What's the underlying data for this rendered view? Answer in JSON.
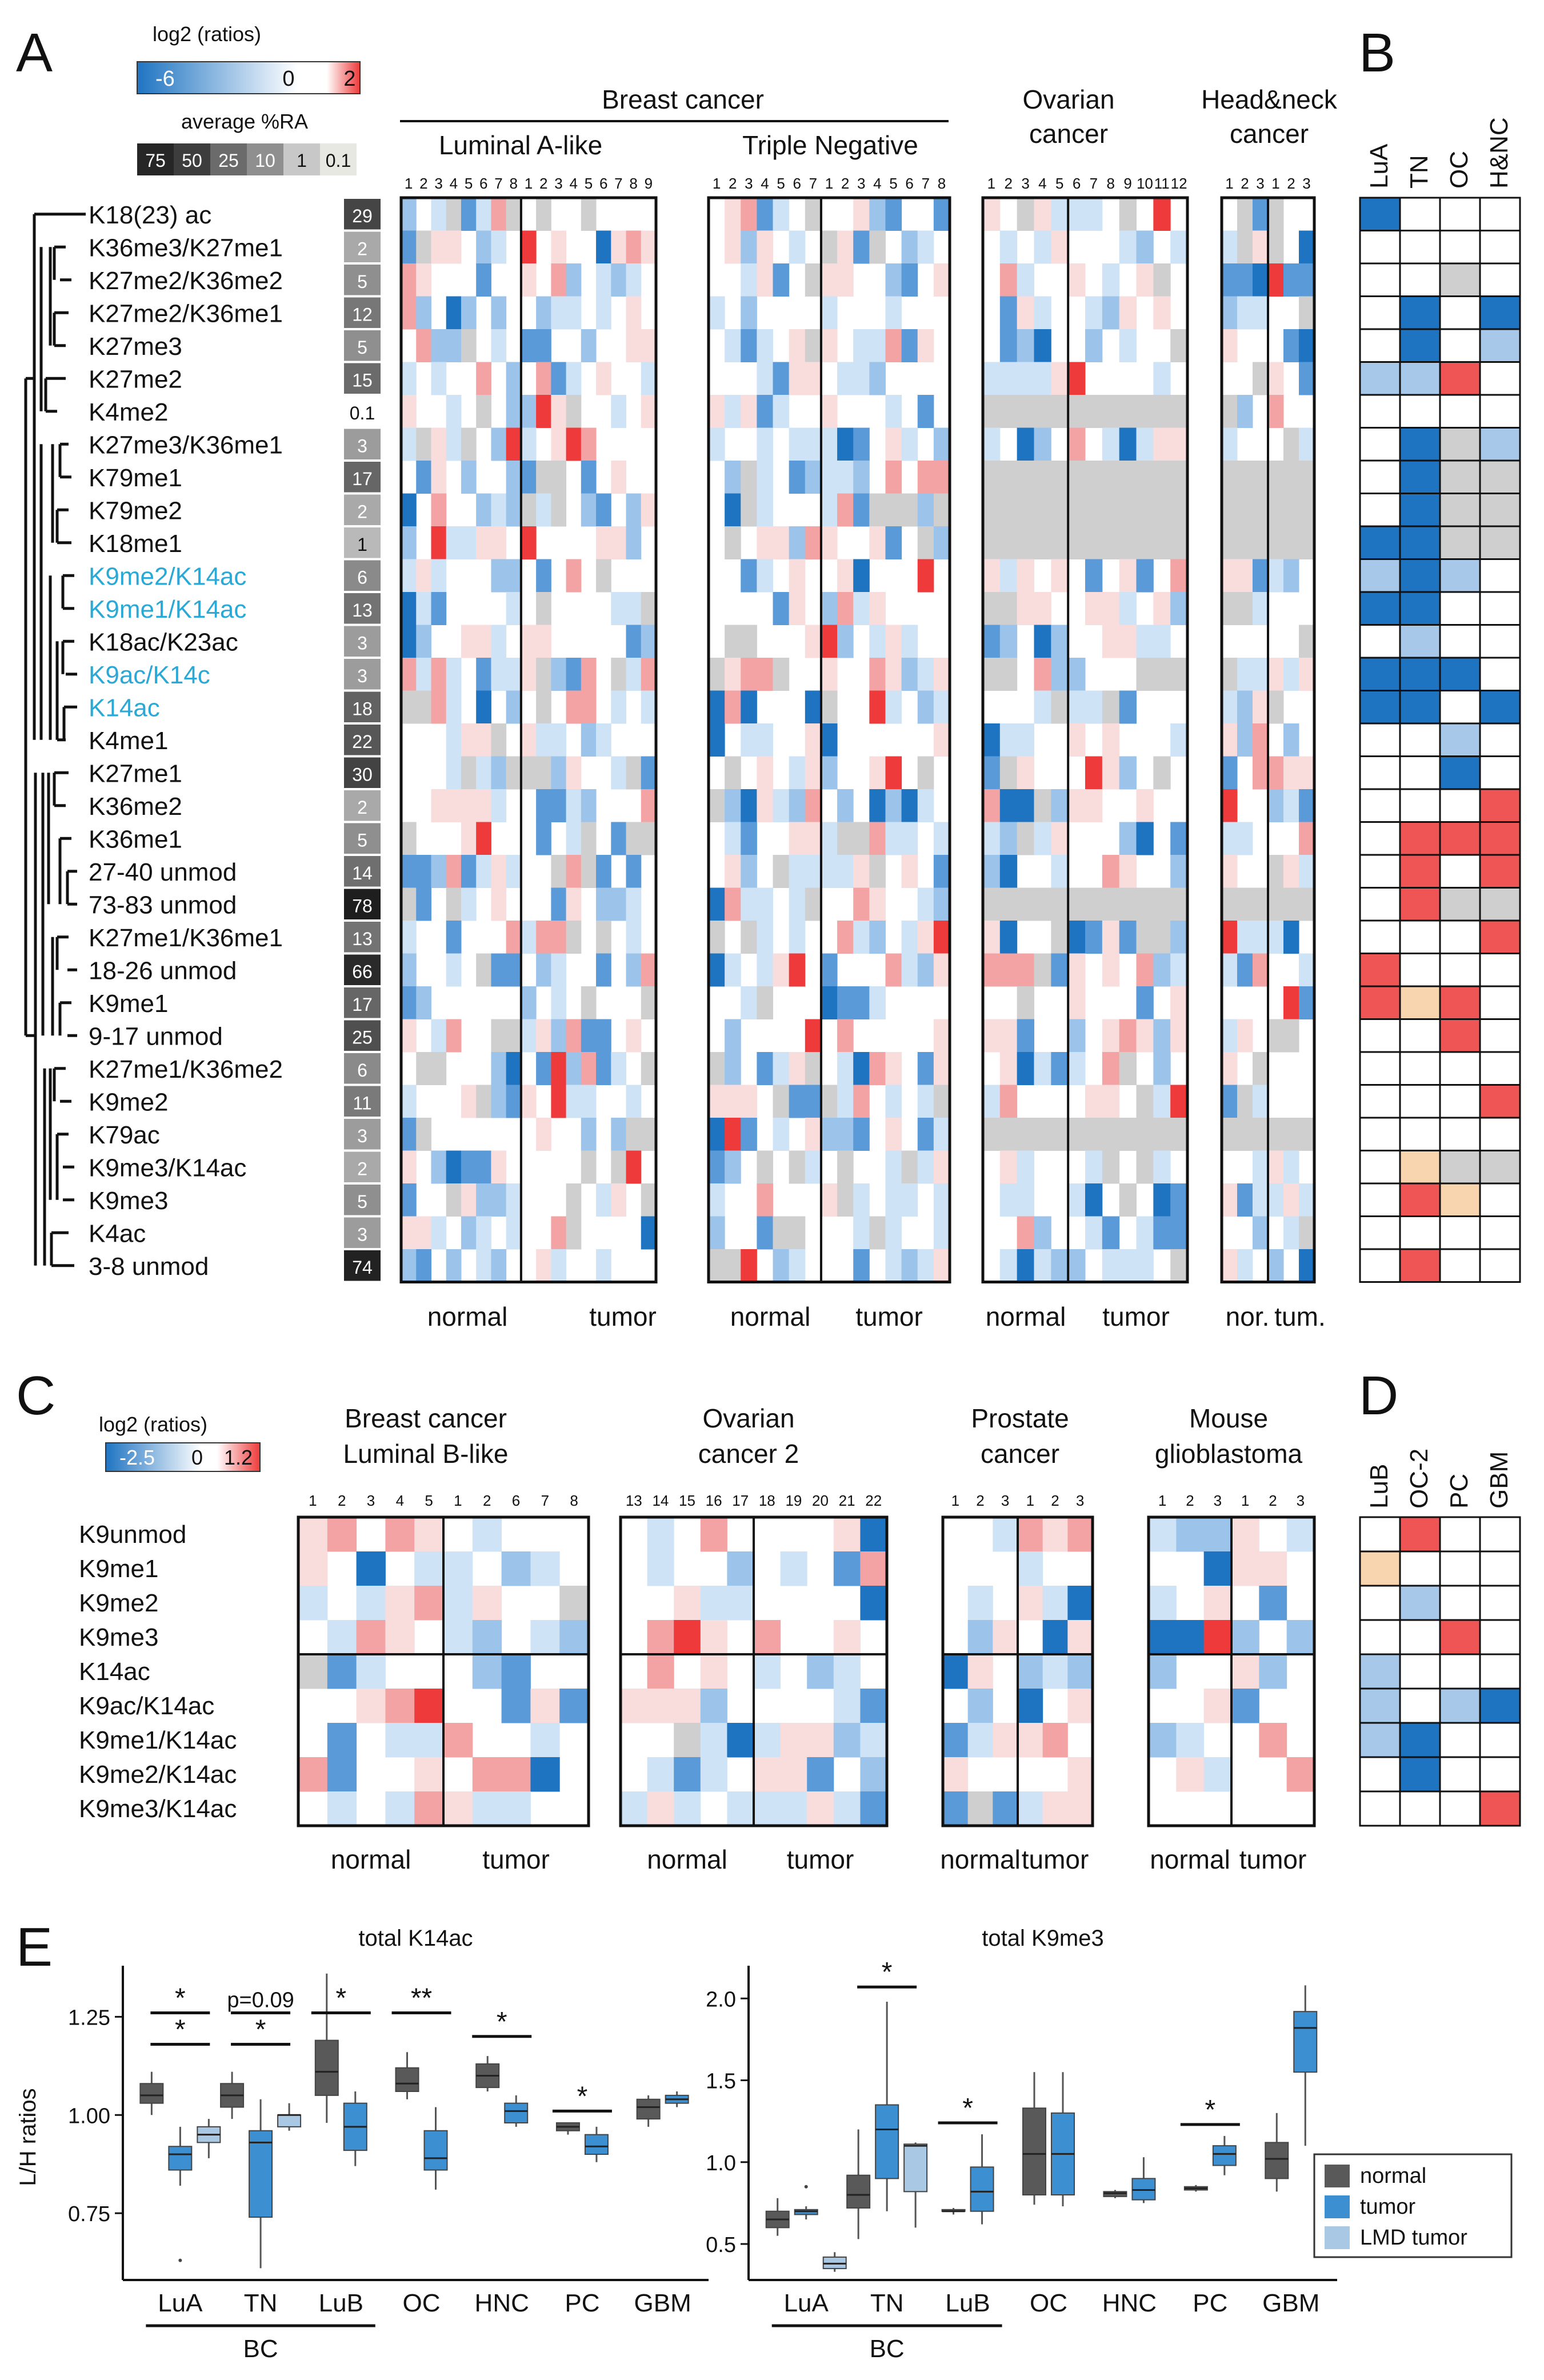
{
  "colors": {
    "neg": "#1f74c2",
    "neg_light": "#cfe3f6",
    "pos": "#ee3a3a",
    "pos_light": "#f9dddd",
    "missing": "#cfcfcf",
    "pale": "#f8d5ae",
    "white": "#ffffff",
    "normal": "#595959",
    "tumor": "#3c8fd1",
    "lmd": "#a9c8e4"
  },
  "panelA": {
    "label": "A",
    "legend_title": "log2 (ratios)",
    "legend_min": "-6",
    "legend_mid": "0",
    "legend_max": "2",
    "ra_title": "average %RA",
    "ra_bins": [
      "75",
      "50",
      "25",
      "10",
      "1",
      "0.1"
    ],
    "group_bc": "Breast cancer",
    "sub_lua": "Luminal A-like",
    "sub_tn": "Triple Negative",
    "group_oc": "Ovarian cancer",
    "group_hnc": "Head&neck cancer",
    "idx_lua": "1 2 3 4 5 6 7 8 1 2 3 4 5 6 7 8 9",
    "idx_tn": "1 2 3 4 5 6 7 1 2 3 4 5 6 7 8",
    "idx_oc": "1 2 3 4 5 6 7 8 9 10 11 12",
    "idx_hnc": "1 2 3 1 2 3",
    "foot_normal": "normal",
    "foot_tumor": "tumor",
    "foot_nor": "nor.",
    "foot_tum": "tum.",
    "rows": [
      {
        "label": "K18(23) ac",
        "ra": "29"
      },
      {
        "label": "K36me3/K27me1",
        "ra": "2"
      },
      {
        "label": "K27me2/K36me2",
        "ra": "5"
      },
      {
        "label": "K27me2/K36me1",
        "ra": "12"
      },
      {
        "label": "K27me3",
        "ra": "5"
      },
      {
        "label": "K27me2",
        "ra": "15"
      },
      {
        "label": "K4me2",
        "ra": "0.1"
      },
      {
        "label": "K27me3/K36me1",
        "ra": "3"
      },
      {
        "label": "K79me1",
        "ra": "17"
      },
      {
        "label": "K79me2",
        "ra": "2"
      },
      {
        "label": "K18me1",
        "ra": "1"
      },
      {
        "label": "K9me2/K14ac",
        "ra": "6",
        "highlight": true
      },
      {
        "label": "K9me1/K14ac",
        "ra": "13",
        "highlight": true
      },
      {
        "label": "K18ac/K23ac",
        "ra": "3"
      },
      {
        "label": "K9ac/K14c",
        "ra": "3",
        "highlight": true
      },
      {
        "label": "K14ac",
        "ra": "18",
        "highlight": true
      },
      {
        "label": "K4me1",
        "ra": "22"
      },
      {
        "label": "K27me1",
        "ra": "30"
      },
      {
        "label": "K36me2",
        "ra": "2"
      },
      {
        "label": "K36me1",
        "ra": "5"
      },
      {
        "label": "27-40 unmod",
        "ra": "14"
      },
      {
        "label": "73-83 unmod",
        "ra": "78"
      },
      {
        "label": "K27me1/K36me1",
        "ra": "13"
      },
      {
        "label": "18-26 unmod",
        "ra": "66"
      },
      {
        "label": "K9me1",
        "ra": "17"
      },
      {
        "label": "9-17 unmod",
        "ra": "25"
      },
      {
        "label": "K27me1/K36me2",
        "ra": "6"
      },
      {
        "label": "K9me2",
        "ra": "11"
      },
      {
        "label": "K79ac",
        "ra": "3"
      },
      {
        "label": "K9me3/K14ac",
        "ra": "2"
      },
      {
        "label": "K9me3",
        "ra": "5"
      },
      {
        "label": "K4ac",
        "ra": "3"
      },
      {
        "label": "3-8 unmod",
        "ra": "74"
      }
    ]
  },
  "panelB": {
    "label": "B",
    "cols": [
      "LuA",
      "TN",
      "OC",
      "H&NC"
    ],
    "cells": [
      [
        "b",
        "w",
        "w",
        "w"
      ],
      [
        "w",
        "w",
        "w",
        "w"
      ],
      [
        "w",
        "w",
        "g",
        "w"
      ],
      [
        "w",
        "b",
        "w",
        "b"
      ],
      [
        "w",
        "b",
        "w",
        "l"
      ],
      [
        "l",
        "l",
        "r",
        "w"
      ],
      [
        "w",
        "w",
        "w",
        "w"
      ],
      [
        "w",
        "b",
        "g",
        "l"
      ],
      [
        "w",
        "b",
        "g",
        "g"
      ],
      [
        "w",
        "b",
        "g",
        "g"
      ],
      [
        "b",
        "b",
        "g",
        "g"
      ],
      [
        "l",
        "b",
        "l",
        "w"
      ],
      [
        "b",
        "b",
        "w",
        "w"
      ],
      [
        "w",
        "l",
        "w",
        "w"
      ],
      [
        "b",
        "b",
        "b",
        "w"
      ],
      [
        "b",
        "b",
        "w",
        "b"
      ],
      [
        "w",
        "w",
        "l",
        "w"
      ],
      [
        "w",
        "w",
        "b",
        "w"
      ],
      [
        "w",
        "w",
        "w",
        "r"
      ],
      [
        "w",
        "r",
        "r",
        "r"
      ],
      [
        "w",
        "r",
        "w",
        "r"
      ],
      [
        "w",
        "r",
        "g",
        "g"
      ],
      [
        "w",
        "w",
        "w",
        "r"
      ],
      [
        "r",
        "w",
        "w",
        "w"
      ],
      [
        "r",
        "p",
        "r",
        "w"
      ],
      [
        "w",
        "w",
        "r",
        "w"
      ],
      [
        "w",
        "w",
        "w",
        "w"
      ],
      [
        "w",
        "w",
        "w",
        "r"
      ],
      [
        "w",
        "w",
        "w",
        "w"
      ],
      [
        "w",
        "p",
        "g",
        "g"
      ],
      [
        "w",
        "r",
        "p",
        "w"
      ],
      [
        "w",
        "w",
        "w",
        "w"
      ],
      [
        "w",
        "r",
        "w",
        "w"
      ]
    ]
  },
  "panelC": {
    "label": "C",
    "legend_title": "log2 (ratios)",
    "legend_min": "-2.5",
    "legend_mid": "0",
    "legend_max": "1.2",
    "titles": [
      "Breast cancer Luminal B-like",
      "Ovarian cancer 2",
      "Prostate cancer",
      "Mouse glioblastoma"
    ],
    "t1a": "Breast cancer",
    "t1b": "Luminal B-like",
    "t2a": "Ovarian",
    "t2b": "cancer 2",
    "t3a": "Prostate",
    "t3b": "cancer",
    "t4a": "Mouse",
    "t4b": "glioblastoma",
    "idx_lub": "1 2 3 4 5 1 2 6 7 8",
    "idx_oc2": "13 14 15 16 17 18 19 20 21 22",
    "idx_pc": "1 2 3 1 2 3",
    "idx_gbm": "1 2 3 1 2 3",
    "rows": [
      "K9unmod",
      "K9me1",
      "K9me2",
      "K9me3",
      "K14ac",
      "K9ac/K14ac",
      "K9me1/K14ac",
      "K9me2/K14ac",
      "K9me3/K14ac"
    ],
    "foot_normal": "normal",
    "foot_tumor": "tumor"
  },
  "panelD": {
    "label": "D",
    "cols": [
      "LuB",
      "OC-2",
      "PC",
      "GBM"
    ],
    "cells": [
      [
        "w",
        "r",
        "w",
        "w"
      ],
      [
        "p",
        "w",
        "w",
        "w"
      ],
      [
        "w",
        "l",
        "w",
        "w"
      ],
      [
        "w",
        "w",
        "r",
        "w"
      ],
      [
        "l",
        "w",
        "w",
        "w"
      ],
      [
        "l",
        "w",
        "l",
        "b"
      ],
      [
        "l",
        "b",
        "w",
        "w"
      ],
      [
        "w",
        "b",
        "w",
        "w"
      ],
      [
        "w",
        "w",
        "w",
        "r"
      ]
    ]
  },
  "panelE": {
    "label": "E",
    "ylabel": "L/H ratios",
    "legend": [
      "normal",
      "tumor",
      "LMD tumor"
    ],
    "bc_label": "BC",
    "chart_data": [
      {
        "type": "box",
        "title": "total K14ac",
        "ylabel": "L/H ratios",
        "ylim": [
          0.58,
          1.38
        ],
        "yticks": [
          "0.75",
          "1.00",
          "1.25"
        ],
        "categories": [
          "LuA",
          "TN",
          "LuB",
          "OC",
          "HNC",
          "PC",
          "GBM"
        ],
        "boxes": [
          {
            "cat": "LuA",
            "group": "normal",
            "min": 1.0,
            "q1": 1.03,
            "med": 1.05,
            "q3": 1.08,
            "max": 1.11
          },
          {
            "cat": "LuA",
            "group": "tumor",
            "min": 0.82,
            "q1": 0.86,
            "med": 0.9,
            "q3": 0.92,
            "max": 0.97,
            "outlier": 0.63
          },
          {
            "cat": "LuA",
            "group": "LMD tumor",
            "min": 0.89,
            "q1": 0.93,
            "med": 0.95,
            "q3": 0.97,
            "max": 0.99
          },
          {
            "cat": "TN",
            "group": "normal",
            "min": 0.99,
            "q1": 1.02,
            "med": 1.05,
            "q3": 1.08,
            "max": 1.11
          },
          {
            "cat": "TN",
            "group": "tumor",
            "min": 0.61,
            "q1": 0.74,
            "med": 0.93,
            "q3": 0.96,
            "max": 1.04
          },
          {
            "cat": "TN",
            "group": "LMD tumor",
            "min": 0.96,
            "q1": 0.97,
            "med": 1.0,
            "q3": 1.0,
            "max": 1.03
          },
          {
            "cat": "LuB",
            "group": "normal",
            "min": 0.98,
            "q1": 1.05,
            "med": 1.11,
            "q3": 1.19,
            "max": 1.36
          },
          {
            "cat": "LuB",
            "group": "tumor",
            "min": 0.87,
            "q1": 0.91,
            "med": 0.97,
            "q3": 1.03,
            "max": 1.06
          },
          {
            "cat": "OC",
            "group": "normal",
            "min": 1.04,
            "q1": 1.06,
            "med": 1.08,
            "q3": 1.12,
            "max": 1.16
          },
          {
            "cat": "OC",
            "group": "tumor",
            "min": 0.81,
            "q1": 0.86,
            "med": 0.89,
            "q3": 0.96,
            "max": 1.02
          },
          {
            "cat": "HNC",
            "group": "normal",
            "min": 1.06,
            "q1": 1.07,
            "med": 1.1,
            "q3": 1.13,
            "max": 1.15
          },
          {
            "cat": "HNC",
            "group": "tumor",
            "min": 0.97,
            "q1": 0.98,
            "med": 1.01,
            "q3": 1.03,
            "max": 1.05
          },
          {
            "cat": "PC",
            "group": "normal",
            "min": 0.95,
            "q1": 0.96,
            "med": 0.97,
            "q3": 0.98,
            "max": 0.98
          },
          {
            "cat": "PC",
            "group": "tumor",
            "min": 0.88,
            "q1": 0.9,
            "med": 0.92,
            "q3": 0.95,
            "max": 0.97
          },
          {
            "cat": "GBM",
            "group": "normal",
            "min": 0.97,
            "q1": 0.99,
            "med": 1.02,
            "q3": 1.04,
            "max": 1.05
          },
          {
            "cat": "GBM",
            "group": "tumor",
            "min": 1.02,
            "q1": 1.03,
            "med": 1.04,
            "q3": 1.05,
            "max": 1.06
          }
        ],
        "annotations": [
          {
            "cat": "LuA",
            "text": "*",
            "y": 1.26
          },
          {
            "cat": "LuA",
            "text": "*",
            "y": 1.18
          },
          {
            "cat": "TN",
            "text": "p=0.09",
            "y": 1.26
          },
          {
            "cat": "TN",
            "text": "*",
            "y": 1.18
          },
          {
            "cat": "LuB",
            "text": "*",
            "y": 1.26
          },
          {
            "cat": "OC",
            "text": "**",
            "y": 1.26
          },
          {
            "cat": "HNC",
            "text": "*",
            "y": 1.2
          },
          {
            "cat": "PC",
            "text": "*",
            "y": 1.01
          }
        ]
      },
      {
        "type": "box",
        "title": "total K9me3",
        "ylabel": "",
        "ylim": [
          0.28,
          2.2
        ],
        "yticks": [
          "0.5",
          "1.0",
          "1.5",
          "2.0"
        ],
        "categories": [
          "LuA",
          "TN",
          "LuB",
          "OC",
          "HNC",
          "PC",
          "GBM"
        ],
        "boxes": [
          {
            "cat": "LuA",
            "group": "normal",
            "min": 0.55,
            "q1": 0.6,
            "med": 0.65,
            "q3": 0.7,
            "max": 0.78
          },
          {
            "cat": "LuA",
            "group": "tumor",
            "min": 0.65,
            "q1": 0.68,
            "med": 0.7,
            "q3": 0.71,
            "max": 0.73,
            "outlier": 0.85
          },
          {
            "cat": "LuA",
            "group": "LMD tumor",
            "min": 0.33,
            "q1": 0.35,
            "med": 0.38,
            "q3": 0.42,
            "max": 0.45
          },
          {
            "cat": "TN",
            "group": "normal",
            "min": 0.53,
            "q1": 0.72,
            "med": 0.8,
            "q3": 0.92,
            "max": 1.2
          },
          {
            "cat": "TN",
            "group": "tumor",
            "min": 0.7,
            "q1": 0.9,
            "med": 1.2,
            "q3": 1.35,
            "max": 1.98
          },
          {
            "cat": "TN",
            "group": "LMD tumor",
            "min": 0.6,
            "q1": 0.82,
            "med": 1.1,
            "q3": 1.11,
            "max": 1.12
          },
          {
            "cat": "LuB",
            "group": "normal",
            "min": 0.68,
            "q1": 0.7,
            "med": 0.7,
            "q3": 0.71,
            "max": 0.72
          },
          {
            "cat": "LuB",
            "group": "tumor",
            "min": 0.62,
            "q1": 0.7,
            "med": 0.82,
            "q3": 0.97,
            "max": 1.17
          },
          {
            "cat": "OC",
            "group": "normal",
            "min": 0.74,
            "q1": 0.8,
            "med": 1.05,
            "q3": 1.33,
            "max": 1.55
          },
          {
            "cat": "OC",
            "group": "tumor",
            "min": 0.73,
            "q1": 0.8,
            "med": 1.05,
            "q3": 1.3,
            "max": 1.55
          },
          {
            "cat": "HNC",
            "group": "normal",
            "min": 0.78,
            "q1": 0.79,
            "med": 0.81,
            "q3": 0.82,
            "max": 0.83
          },
          {
            "cat": "HNC",
            "group": "tumor",
            "min": 0.75,
            "q1": 0.77,
            "med": 0.83,
            "q3": 0.9,
            "max": 1.03
          },
          {
            "cat": "PC",
            "group": "normal",
            "min": 0.82,
            "q1": 0.83,
            "med": 0.84,
            "q3": 0.85,
            "max": 0.86
          },
          {
            "cat": "PC",
            "group": "tumor",
            "min": 0.92,
            "q1": 0.98,
            "med": 1.05,
            "q3": 1.1,
            "max": 1.16
          },
          {
            "cat": "GBM",
            "group": "normal",
            "min": 0.82,
            "q1": 0.9,
            "med": 1.02,
            "q3": 1.12,
            "max": 1.3
          },
          {
            "cat": "GBM",
            "group": "tumor",
            "min": 1.1,
            "q1": 1.55,
            "med": 1.82,
            "q3": 1.92,
            "max": 2.08
          }
        ],
        "annotations": [
          {
            "cat": "TN",
            "text": "*",
            "y": 2.07
          },
          {
            "cat": "LuB",
            "text": "*",
            "y": 1.24
          },
          {
            "cat": "PC",
            "text": "*",
            "y": 1.23
          }
        ]
      }
    ]
  }
}
